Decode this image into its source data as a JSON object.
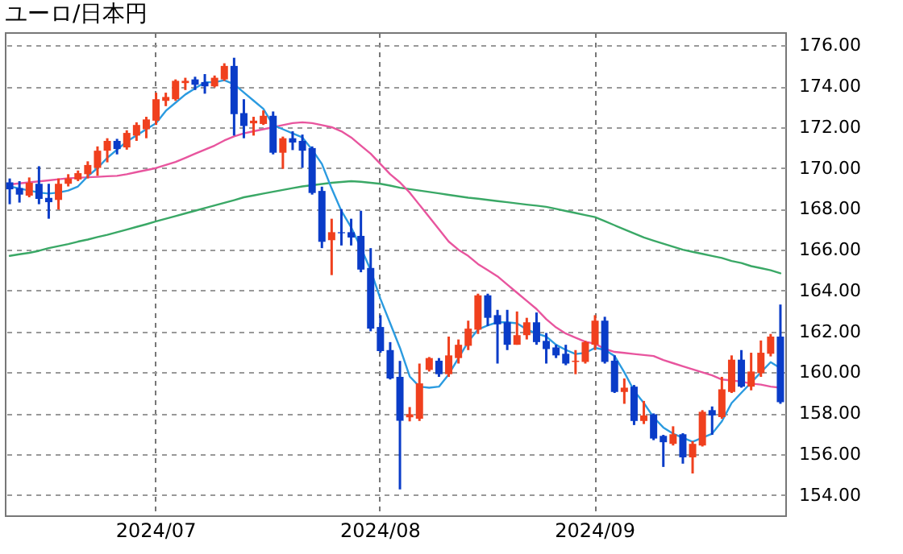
{
  "chart_data": {
    "type": "candlestick",
    "title": "ユーロ/日本円",
    "categories": [
      null,
      null,
      null,
      null,
      null,
      null,
      null,
      null,
      null,
      null,
      null,
      null,
      null,
      null,
      null,
      "2024/07",
      null,
      null,
      null,
      null,
      null,
      null,
      null,
      null,
      null,
      null,
      null,
      null,
      null,
      null,
      null,
      null,
      null,
      null,
      null,
      null,
      null,
      null,
      "2024/08",
      null,
      null,
      null,
      null,
      null,
      null,
      null,
      null,
      null,
      null,
      null,
      null,
      null,
      null,
      null,
      null,
      null,
      null,
      null,
      null,
      null,
      "2024/09",
      null,
      null,
      null,
      null,
      null,
      null,
      null,
      null,
      null,
      null,
      null,
      null,
      null,
      null,
      null,
      null,
      null,
      null,
      null
    ],
    "ohlc": [
      [
        169.3,
        169.49,
        168.23,
        168.96
      ],
      [
        169.02,
        169.36,
        168.31,
        168.7
      ],
      [
        168.65,
        169.54,
        168.57,
        169.28
      ],
      [
        169.23,
        170.09,
        168.23,
        168.49
      ],
      [
        168.54,
        169.23,
        167.52,
        168.33
      ],
      [
        168.44,
        169.49,
        167.97,
        169.23
      ],
      [
        169.23,
        169.7,
        169.1,
        169.49
      ],
      [
        169.44,
        169.88,
        169.36,
        169.75
      ],
      [
        169.7,
        170.33,
        169.49,
        170.15
      ],
      [
        170.01,
        171.06,
        169.62,
        170.85
      ],
      [
        170.85,
        171.46,
        170.28,
        171.33
      ],
      [
        171.33,
        171.43,
        170.67,
        170.93
      ],
      [
        171.01,
        171.85,
        170.9,
        171.72
      ],
      [
        171.59,
        172.24,
        171.33,
        172.11
      ],
      [
        171.9,
        172.51,
        171.46,
        172.38
      ],
      [
        172.32,
        173.69,
        172.11,
        173.37
      ],
      [
        173.29,
        173.69,
        173.03,
        173.48
      ],
      [
        173.37,
        174.34,
        173.29,
        174.27
      ],
      [
        174.16,
        174.42,
        173.82,
        174.27
      ],
      [
        174.34,
        174.47,
        173.82,
        174.08
      ],
      [
        174.21,
        174.6,
        173.64,
        174.0
      ],
      [
        174.0,
        174.53,
        173.95,
        174.42
      ],
      [
        174.34,
        175.13,
        174.27,
        175.0
      ],
      [
        175.0,
        175.4,
        171.59,
        172.64
      ],
      [
        172.69,
        173.37,
        171.46,
        172.06
      ],
      [
        172.19,
        172.51,
        171.59,
        172.32
      ],
      [
        172.16,
        172.82,
        172.11,
        172.56
      ],
      [
        172.56,
        172.77,
        170.67,
        170.75
      ],
      [
        170.75,
        171.54,
        169.96,
        171.46
      ],
      [
        171.46,
        171.8,
        170.88,
        171.25
      ],
      [
        171.33,
        171.64,
        170.01,
        170.85
      ],
      [
        170.98,
        171.06,
        168.7,
        168.78
      ],
      [
        168.88,
        169.09,
        166.08,
        166.39
      ],
      [
        166.47,
        167.52,
        164.76,
        166.86
      ],
      [
        166.86,
        167.99,
        166.21,
        166.81
      ],
      [
        166.86,
        167.52,
        166.21,
        166.6
      ],
      [
        166.68,
        167.91,
        164.9,
        165.03
      ],
      [
        165.11,
        166.08,
        162.01,
        162.14
      ],
      [
        162.22,
        162.8,
        160.96,
        161.04
      ],
      [
        161.09,
        161.48,
        159.65,
        159.7
      ],
      [
        159.78,
        160.56,
        154.27,
        157.63
      ],
      [
        157.8,
        158.3,
        157.6,
        157.95
      ],
      [
        157.73,
        160.43,
        157.62,
        159.46
      ],
      [
        160.12,
        160.75,
        160.04,
        160.7
      ],
      [
        160.57,
        160.7,
        159.78,
        159.91
      ],
      [
        159.91,
        161.75,
        159.78,
        160.83
      ],
      [
        160.7,
        161.61,
        160.43,
        161.35
      ],
      [
        161.3,
        162.53,
        161.09,
        162.14
      ],
      [
        162.09,
        163.85,
        161.88,
        163.77
      ],
      [
        163.77,
        163.85,
        162.27,
        162.67
      ],
      [
        162.8,
        163.06,
        160.43,
        162.35
      ],
      [
        162.45,
        163.06,
        161.09,
        161.35
      ],
      [
        161.35,
        162.98,
        161.35,
        161.82
      ],
      [
        161.82,
        162.67,
        161.61,
        162.45
      ],
      [
        162.45,
        162.93,
        161.35,
        161.48
      ],
      [
        161.54,
        161.93,
        160.43,
        161.14
      ],
      [
        161.22,
        161.35,
        160.7,
        160.83
      ],
      [
        160.91,
        161.35,
        160.35,
        160.43
      ],
      [
        160.51,
        161.09,
        159.91,
        160.57
      ],
      [
        160.51,
        161.54,
        160.43,
        161.48
      ],
      [
        161.35,
        162.8,
        161.09,
        162.53
      ],
      [
        162.53,
        162.72,
        160.43,
        160.51
      ],
      [
        160.57,
        160.83,
        158.99,
        159.04
      ],
      [
        159.04,
        159.7,
        158.46,
        159.25
      ],
      [
        159.3,
        159.38,
        157.42,
        157.62
      ],
      [
        157.62,
        158.6,
        157.47,
        157.89
      ],
      [
        157.94,
        157.99,
        156.68,
        156.76
      ],
      [
        156.89,
        156.94,
        155.37,
        156.58
      ],
      [
        156.5,
        157.36,
        156.42,
        156.97
      ],
      [
        156.97,
        157.02,
        155.53,
        155.84
      ],
      [
        155.84,
        156.63,
        155.05,
        156.5
      ],
      [
        156.42,
        158.15,
        156.37,
        158.07
      ],
      [
        158.15,
        158.33,
        156.94,
        157.89
      ],
      [
        157.81,
        159.78,
        157.73,
        159.17
      ],
      [
        159.04,
        160.83,
        158.99,
        160.62
      ],
      [
        160.62,
        161.09,
        159.25,
        159.3
      ],
      [
        159.3,
        160.96,
        159.12,
        160.04
      ],
      [
        159.96,
        161.56,
        159.78,
        160.96
      ],
      [
        160.91,
        161.88,
        160.78,
        161.75
      ],
      [
        161.75,
        163.32,
        158.46,
        158.54
      ]
    ],
    "colors": [
      "#0a3cc8",
      "#0a3cc8",
      "#f0401e",
      "#0a3cc8",
      "#0a3cc8",
      "#f0401e",
      "#f0401e",
      "#f0401e",
      "#f0401e",
      "#f0401e",
      "#f0401e",
      "#0a3cc8",
      "#f0401e",
      "#f0401e",
      "#f0401e",
      "#f0401e",
      "#f0401e",
      "#f0401e",
      "#f0401e",
      "#0a3cc8",
      "#0a3cc8",
      "#f0401e",
      "#f0401e",
      "#0a3cc8",
      "#0a3cc8",
      "#f0401e",
      "#f0401e",
      "#0a3cc8",
      "#f0401e",
      "#0a3cc8",
      "#0a3cc8",
      "#0a3cc8",
      "#0a3cc8",
      "#f0401e",
      "#0a3cc8",
      "#0a3cc8",
      "#0a3cc8",
      "#0a3cc8",
      "#0a3cc8",
      "#0a3cc8",
      "#0a3cc8",
      "#f0401e",
      "#f0401e",
      "#f0401e",
      "#0a3cc8",
      "#f0401e",
      "#f0401e",
      "#f0401e",
      "#f0401e",
      "#0a3cc8",
      "#0a3cc8",
      "#0a3cc8",
      "#f0401e",
      "#f0401e",
      "#0a3cc8",
      "#0a3cc8",
      "#0a3cc8",
      "#0a3cc8",
      "#f0401e",
      "#f0401e",
      "#f0401e",
      "#0a3cc8",
      "#0a3cc8",
      "#f0401e",
      "#0a3cc8",
      "#f0401e",
      "#0a3cc8",
      "#0a3cc8",
      "#f0401e",
      "#0a3cc8",
      "#f0401e",
      "#f0401e",
      "#0a3cc8",
      "#f0401e",
      "#f0401e",
      "#0a3cc8",
      "#f0401e",
      "#f0401e",
      "#f0401e",
      "#0a3cc8"
    ],
    "series": [
      {
        "type": "line",
        "color": "#3aa866",
        "values": [
          165.7,
          165.78,
          165.85,
          165.95,
          166.08,
          166.18,
          166.28,
          166.4,
          166.5,
          166.62,
          166.73,
          166.86,
          166.99,
          167.12,
          167.25,
          167.39,
          167.52,
          167.65,
          167.78,
          167.91,
          168.04,
          168.17,
          168.3,
          168.43,
          168.57,
          168.66,
          168.75,
          168.84,
          168.93,
          169.02,
          169.1,
          169.16,
          169.22,
          169.28,
          169.32,
          169.36,
          169.33,
          169.28,
          169.23,
          169.14,
          169.04,
          168.97,
          168.9,
          168.83,
          168.76,
          168.69,
          168.62,
          168.55,
          168.5,
          168.44,
          168.38,
          168.33,
          168.27,
          168.21,
          168.16,
          168.1,
          168.0,
          167.9,
          167.8,
          167.7,
          167.6,
          167.4,
          167.2,
          167.0,
          166.8,
          166.6,
          166.45,
          166.3,
          166.15,
          166.0,
          165.9,
          165.8,
          165.7,
          165.6,
          165.45,
          165.35,
          165.2,
          165.1,
          165.0,
          164.85
        ]
      },
      {
        "type": "line",
        "color": "#e8559e",
        "values": [
          169.2,
          169.25,
          169.3,
          169.35,
          169.4,
          169.45,
          169.5,
          169.52,
          169.55,
          169.57,
          169.6,
          169.62,
          169.7,
          169.8,
          169.9,
          170.0,
          170.15,
          170.3,
          170.5,
          170.7,
          170.9,
          171.1,
          171.35,
          171.55,
          171.7,
          171.8,
          171.9,
          172.0,
          172.1,
          172.2,
          172.24,
          172.2,
          172.1,
          172.0,
          171.8,
          171.5,
          171.1,
          170.7,
          170.2,
          169.7,
          169.3,
          168.8,
          168.2,
          167.6,
          167.0,
          166.4,
          166.0,
          165.7,
          165.3,
          165.0,
          164.7,
          164.3,
          163.9,
          163.5,
          163.1,
          162.6,
          162.2,
          161.9,
          161.7,
          161.5,
          161.4,
          161.15,
          161.0,
          160.95,
          160.9,
          160.85,
          160.8,
          160.6,
          160.45,
          160.3,
          160.15,
          160.0,
          159.85,
          159.65,
          159.6,
          159.55,
          159.45,
          159.4,
          159.3,
          159.25
        ]
      },
      {
        "type": "line",
        "color": "#2b9be0",
        "values": [
          169.1,
          169.0,
          168.9,
          168.8,
          168.75,
          168.8,
          168.9,
          169.1,
          169.6,
          170.0,
          170.5,
          170.9,
          171.3,
          171.6,
          171.9,
          172.2,
          172.8,
          173.2,
          173.6,
          173.9,
          174.2,
          174.2,
          174.3,
          174.1,
          173.7,
          173.3,
          172.9,
          172.1,
          171.9,
          171.7,
          171.5,
          170.9,
          170.2,
          169.0,
          167.9,
          167.1,
          166.1,
          165.0,
          163.6,
          162.4,
          161.2,
          159.8,
          159.3,
          159.25,
          159.3,
          159.9,
          160.7,
          161.5,
          162.1,
          162.3,
          162.45,
          162.45,
          162.4,
          162.1,
          161.9,
          161.75,
          161.35,
          161.1,
          160.9,
          160.95,
          161.2,
          161.1,
          160.8,
          160.0,
          159.1,
          158.5,
          157.8,
          157.3,
          157.0,
          156.8,
          156.6,
          156.8,
          157.0,
          157.6,
          158.5,
          159.0,
          159.5,
          160.0,
          160.5,
          160.2
        ]
      }
    ],
    "ylim": [
      153,
      176.65
    ],
    "yticks": [
      {
        "value": 154,
        "label": "154.00"
      },
      {
        "value": 156,
        "label": "156.00"
      },
      {
        "value": 158,
        "label": "158.00"
      },
      {
        "value": 160,
        "label": "160.00"
      },
      {
        "value": 162,
        "label": "162.00"
      },
      {
        "value": 164,
        "label": "164.00"
      },
      {
        "value": 166,
        "label": "166.00"
      },
      {
        "value": 168,
        "label": "168.00"
      },
      {
        "value": 170,
        "label": "170.00"
      },
      {
        "value": 172,
        "label": "172.00"
      },
      {
        "value": 174,
        "label": "174.00"
      },
      {
        "value": 176,
        "label": "176.00"
      }
    ],
    "grid": true
  }
}
